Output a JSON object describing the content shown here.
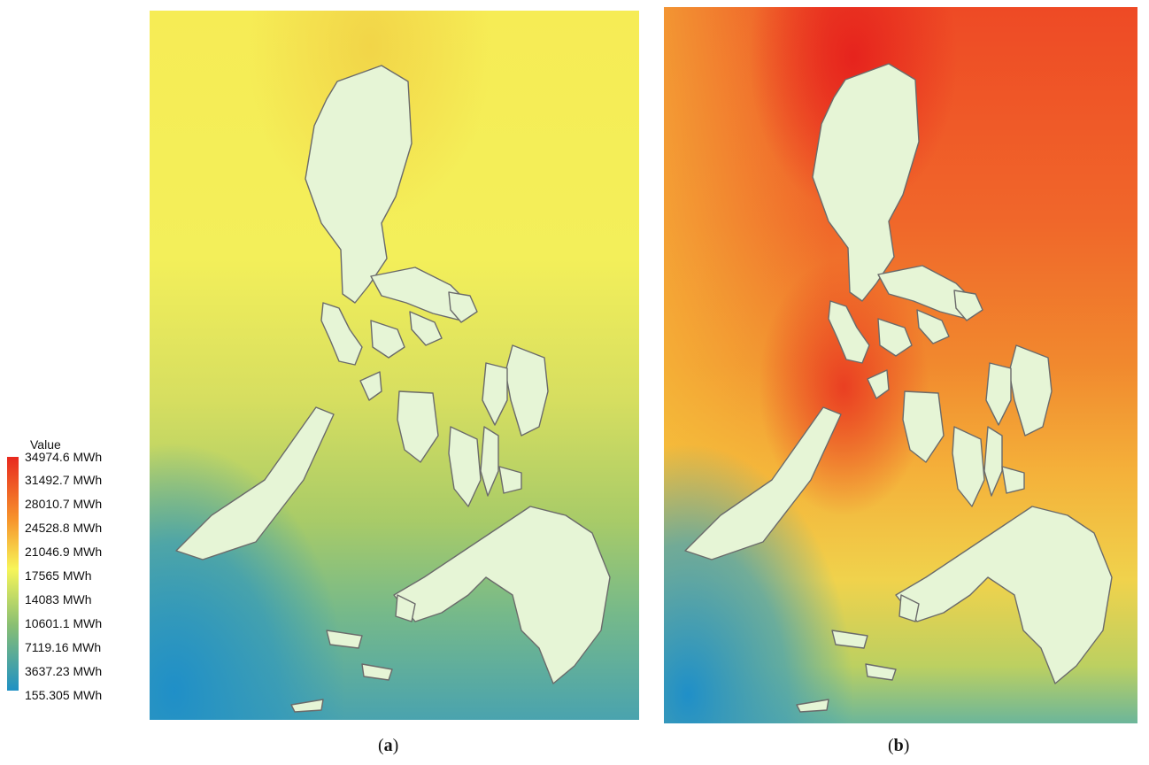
{
  "legend": {
    "title": "Value",
    "labels": [
      "34974.6 MWh",
      "31492.7 MWh",
      "28010.7 MWh",
      "24528.8 MWh",
      "21046.9 MWh",
      "17565 MWh",
      "14083 MWh",
      "10601.1 MWh",
      "7119.16 MWh",
      "3637.23 MWh",
      "155.305 MWh"
    ],
    "colors": {
      "high": "#e8291f",
      "mid": "#f7f559",
      "low": "#1f91c4"
    }
  },
  "panels": [
    {
      "id": "a",
      "caption_open": "(",
      "caption_letter": "a",
      "caption_close": ")"
    },
    {
      "id": "b",
      "caption_open": "(",
      "caption_letter": "b",
      "caption_close": ")"
    }
  ],
  "land_color": "#e6f5d6",
  "coast_color": "#6b6b6b"
}
